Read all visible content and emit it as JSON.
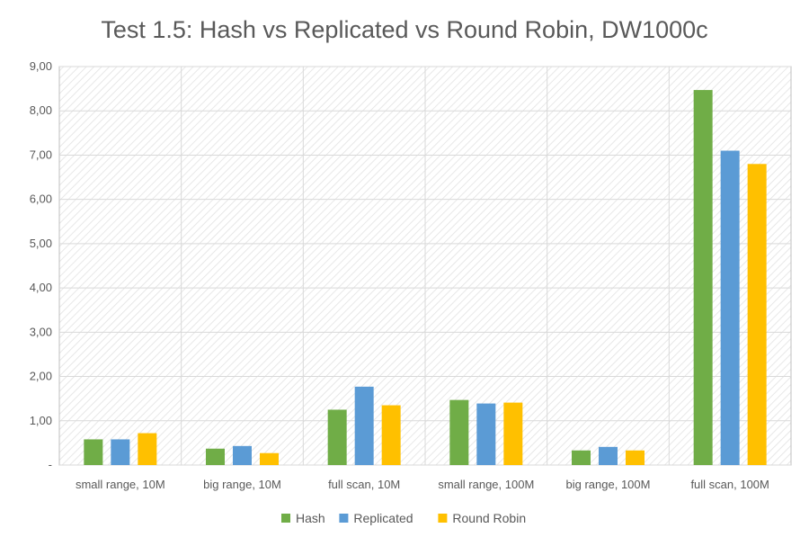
{
  "chart_data": {
    "type": "bar",
    "title": "Test 1.5: Hash vs Replicated vs Round Robin, DW1000c",
    "xlabel": "",
    "ylabel": "",
    "ylim": [
      0,
      9
    ],
    "ytick_values": [
      0,
      1,
      2,
      3,
      4,
      5,
      6,
      7,
      8,
      9
    ],
    "ytick_labels": [
      "-",
      "1,00",
      "2,00",
      "3,00",
      "4,00",
      "5,00",
      "6,00",
      "7,00",
      "8,00",
      "9,00"
    ],
    "grid": true,
    "legend_position": "bottom",
    "categories": [
      "small range, 10M",
      "big range, 10M",
      "full scan, 10M",
      "small range, 100M",
      "big range, 100M",
      "full scan, 100M"
    ],
    "series": [
      {
        "name": "Hash",
        "color": "#70AD47",
        "values": [
          0.58,
          0.37,
          1.25,
          1.47,
          0.33,
          8.47
        ]
      },
      {
        "name": "Replicated",
        "color": "#5B9BD5",
        "values": [
          0.58,
          0.43,
          1.77,
          1.39,
          0.41,
          7.1
        ]
      },
      {
        "name": "Round Robin",
        "color": "#FFC000",
        "values": [
          0.72,
          0.27,
          1.35,
          1.41,
          0.33,
          6.8
        ]
      }
    ]
  }
}
